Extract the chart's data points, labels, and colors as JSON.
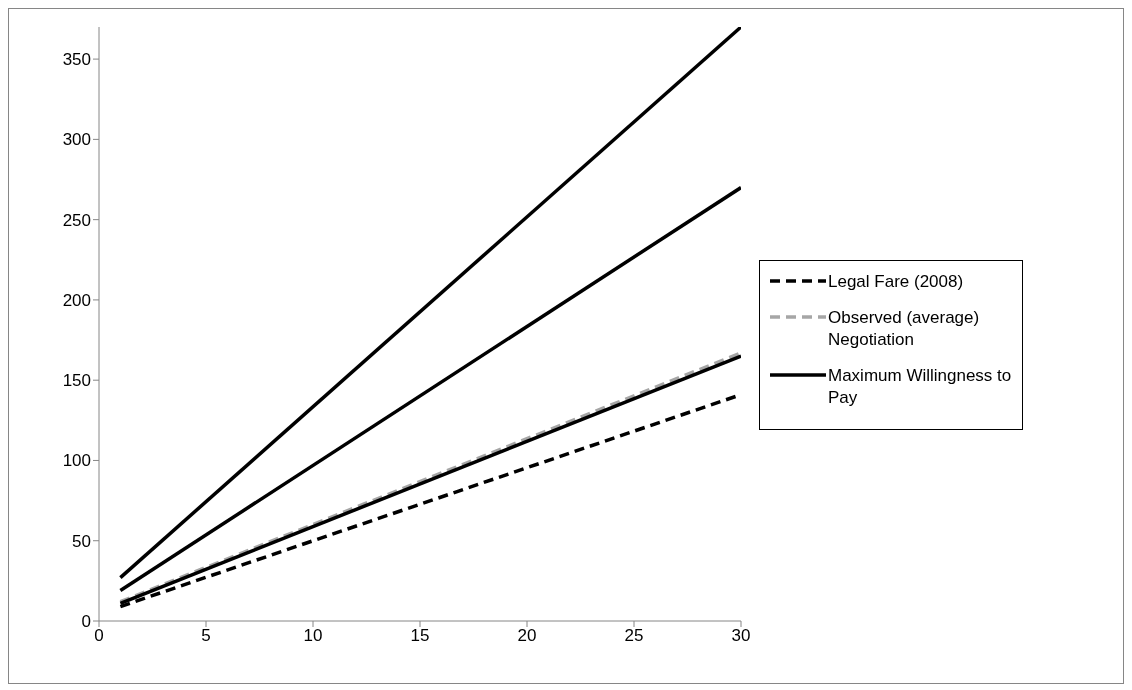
{
  "chart_data": {
    "type": "line",
    "x": [
      1,
      30
    ],
    "series": [
      {
        "name": "Legal Fare (2008)",
        "color": "#000000",
        "line_style": "dashed",
        "values": [
          9,
          141
        ]
      },
      {
        "name": "Observed (average) Negotiation",
        "color": "#a6a6a6",
        "line_style": "dashed",
        "values": [
          12,
          167
        ]
      },
      {
        "color": "#000000",
        "line_style": "solid",
        "values": [
          11,
          165
        ]
      },
      {
        "name": "Maximum Willingness to Pay",
        "color": "#000000",
        "line_style": "solid",
        "values": [
          27,
          370
        ]
      },
      {
        "color": "#000000",
        "line_style": "solid",
        "values": [
          19,
          270
        ]
      }
    ],
    "xlim": [
      0,
      30
    ],
    "xticks": [
      0,
      5,
      10,
      15,
      20,
      25,
      30
    ],
    "ylim": [
      0,
      370
    ],
    "yticks": [
      0,
      50,
      100,
      150,
      200,
      250,
      300,
      350
    ],
    "grid": false,
    "legend": "right",
    "marker": "none"
  }
}
